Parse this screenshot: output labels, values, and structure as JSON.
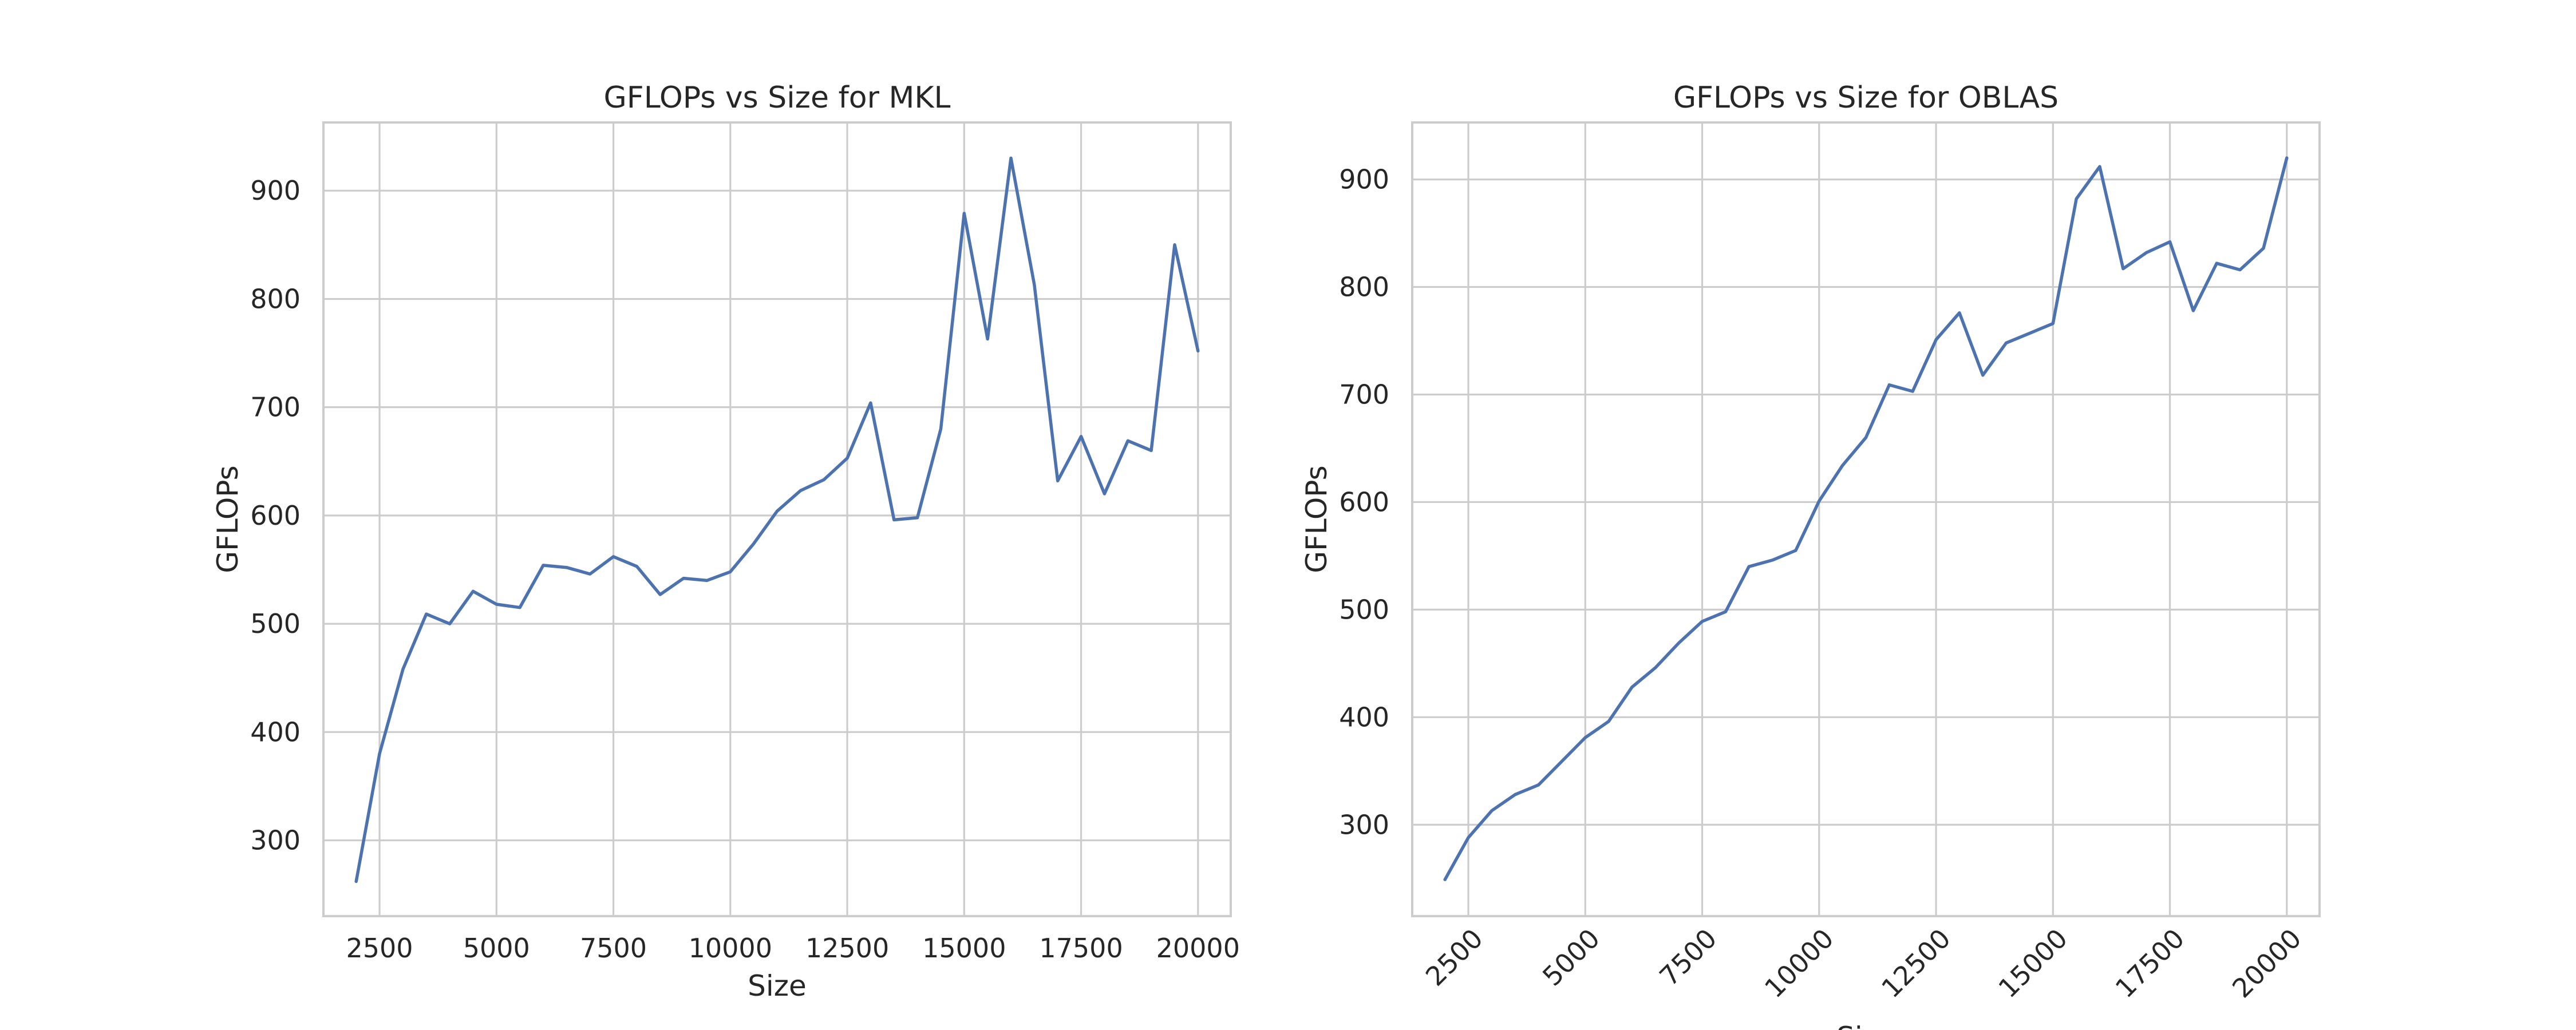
{
  "chart_data": [
    {
      "type": "line",
      "title": "GFLOPs vs Size for MKL",
      "xlabel": "Size",
      "ylabel": "GFLOPs",
      "xlim": [
        1300,
        20700
      ],
      "ylim": [
        230,
        963
      ],
      "xticks": [
        2500,
        5000,
        7500,
        10000,
        12500,
        15000,
        17500,
        20000
      ],
      "yticks": [
        300,
        400,
        500,
        600,
        700,
        800,
        900
      ],
      "xtick_rotation": 0,
      "grid": true,
      "series": [
        {
          "color": "#4c72b0",
          "x": [
            2000,
            2500,
            3000,
            3500,
            4000,
            4500,
            5000,
            5500,
            6000,
            6500,
            7000,
            7500,
            8000,
            8500,
            9000,
            9500,
            10000,
            10500,
            11000,
            11500,
            12000,
            12500,
            13000,
            13500,
            14000,
            14500,
            15000,
            15500,
            16000,
            16500,
            17000,
            17500,
            18000,
            18500,
            19000,
            19500,
            20000
          ],
          "y": [
            262,
            380,
            458,
            509,
            500,
            530,
            518,
            515,
            554,
            552,
            546,
            562,
            553,
            527,
            542,
            540,
            548,
            574,
            604,
            623,
            633,
            653,
            704,
            596,
            598,
            680,
            879,
            763,
            930,
            813,
            632,
            673,
            620,
            669,
            660,
            850,
            752
          ]
        }
      ]
    },
    {
      "type": "line",
      "title": "GFLOPs vs Size for OBLAS",
      "xlabel": "Size",
      "ylabel": "GFLOPs",
      "xlim": [
        1300,
        20700
      ],
      "ylim": [
        215,
        953
      ],
      "xticks": [
        2500,
        5000,
        7500,
        10000,
        12500,
        15000,
        17500,
        20000
      ],
      "yticks": [
        300,
        400,
        500,
        600,
        700,
        800,
        900
      ],
      "xtick_rotation": -45,
      "grid": true,
      "series": [
        {
          "color": "#4c72b0",
          "x": [
            2000,
            2500,
            3000,
            3500,
            4000,
            4500,
            5000,
            5500,
            6000,
            6500,
            7000,
            7500,
            8000,
            8500,
            9000,
            9500,
            10000,
            10500,
            11000,
            11500,
            12000,
            12500,
            13000,
            13500,
            14000,
            14500,
            15000,
            15500,
            16000,
            16500,
            17000,
            17500,
            18000,
            18500,
            19000,
            19500,
            20000
          ],
          "y": [
            249,
            288,
            313,
            328,
            337,
            359,
            381,
            396,
            428,
            446,
            469,
            489,
            498,
            540,
            546,
            555,
            601,
            634,
            660,
            709,
            703,
            751,
            776,
            718,
            748,
            757,
            766,
            882,
            912,
            817,
            832,
            842,
            778,
            822,
            816,
            836,
            920
          ]
        }
      ]
    }
  ]
}
